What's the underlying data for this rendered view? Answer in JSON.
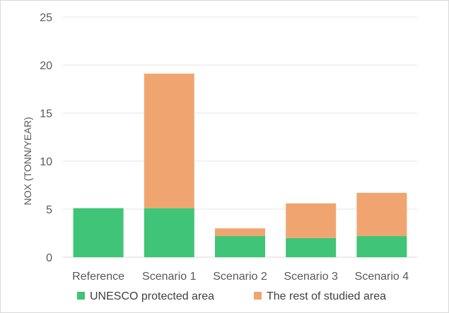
{
  "chart_data": {
    "type": "bar",
    "stacked": true,
    "categories": [
      "Reference",
      "Scenario 1",
      "Scenario 2",
      "Scenario 3",
      "Scenario 4"
    ],
    "series": [
      {
        "name": "UNESCO protected area",
        "values": [
          5.1,
          5.1,
          2.2,
          2.0,
          2.2
        ],
        "color": "#3fc478"
      },
      {
        "name": "The rest of studied area",
        "values": [
          0,
          14.0,
          0.8,
          3.6,
          4.5
        ],
        "color": "#f0a571"
      }
    ],
    "ylabel": "NOX (TONN/YEAR)",
    "ylim": [
      0,
      25
    ],
    "yticks": [
      0,
      5,
      10,
      15,
      20,
      25
    ],
    "grid": true,
    "legend_position": "bottom",
    "gridline_color": "#e6e6e6",
    "axis_color": "#d9d9d9"
  }
}
